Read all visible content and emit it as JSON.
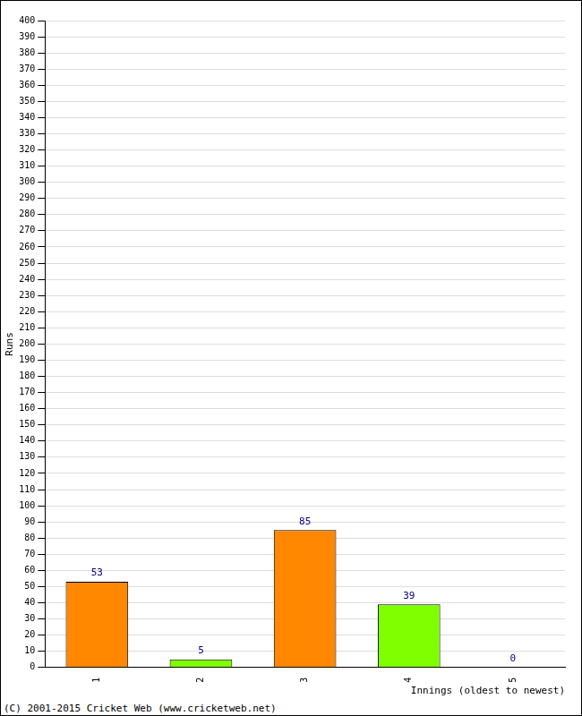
{
  "chart_data": {
    "type": "bar",
    "categories": [
      "1",
      "2",
      "3",
      "4",
      "5"
    ],
    "values": [
      53,
      5,
      85,
      39,
      0
    ],
    "colors": [
      "#ff8800",
      "#80ff00",
      "#ff8800",
      "#80ff00",
      "#ff8800"
    ],
    "y_label": "Runs",
    "x_label": "Innings (oldest to newest)",
    "annotations": [
      "(C) 2001-2015 Cricket Web (www.cricketweb.net)"
    ],
    "ylim": [
      0,
      400
    ],
    "yticks": [
      0,
      10,
      20,
      30,
      40,
      50,
      60,
      70,
      80,
      90,
      100,
      110,
      120,
      130,
      140,
      150,
      160,
      170,
      180,
      190,
      200,
      210,
      220,
      230,
      240,
      250,
      260,
      270,
      280,
      290,
      300,
      310,
      320,
      330,
      340,
      350,
      360,
      370,
      380,
      390,
      400
    ],
    "grid": true,
    "data_labels": true
  }
}
